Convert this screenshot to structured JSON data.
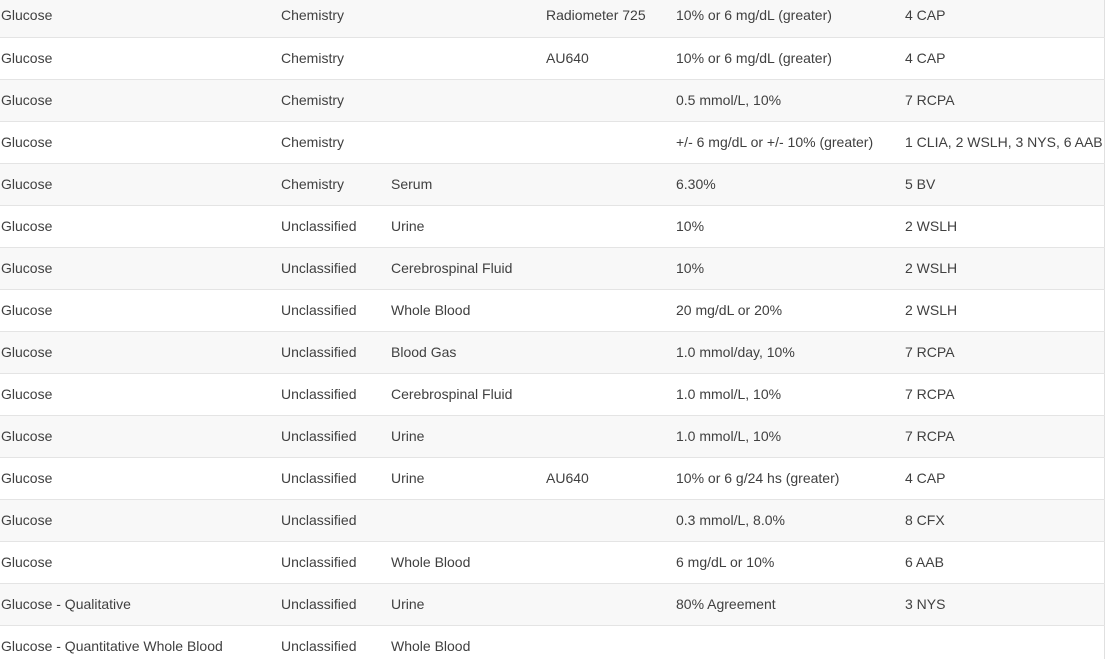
{
  "ui": {
    "type": "data-table",
    "description": "Analyte allowable-error / performance limits table, scrolled mid-list (no header visible)"
  },
  "colors": {
    "row_stripe": "#f8f8f8",
    "row_white": "#ffffff",
    "row_border": "#e4e4e4",
    "table_right_border": "#e0e0e0",
    "text": "#404040"
  },
  "table": {
    "column_keys": [
      "analyte",
      "category",
      "fluid",
      "instrument",
      "limit",
      "source"
    ],
    "rows": [
      {
        "analyte": "Glucose",
        "category": "Chemistry",
        "fluid": "",
        "instrument": "Radiometer 725",
        "limit": "10% or 6 mg/dL (greater)",
        "source": "4 CAP"
      },
      {
        "analyte": "Glucose",
        "category": "Chemistry",
        "fluid": "",
        "instrument": "AU640",
        "limit": "10% or 6 mg/dL (greater)",
        "source": "4 CAP"
      },
      {
        "analyte": "Glucose",
        "category": "Chemistry",
        "fluid": "",
        "instrument": "",
        "limit": "0.5 mmol/L, 10%",
        "source": "7 RCPA"
      },
      {
        "analyte": "Glucose",
        "category": "Chemistry",
        "fluid": "",
        "instrument": "",
        "limit": "+/- 6 mg/dL or +/- 10% (greater)",
        "source": "1 CLIA, 2 WSLH, 3 NYS, 6 AAB"
      },
      {
        "analyte": "Glucose",
        "category": "Chemistry",
        "fluid": "Serum",
        "instrument": "",
        "limit": "6.30%",
        "source": "5 BV"
      },
      {
        "analyte": "Glucose",
        "category": "Unclassified",
        "fluid": "Urine",
        "instrument": "",
        "limit": "10%",
        "source": "2 WSLH"
      },
      {
        "analyte": "Glucose",
        "category": "Unclassified",
        "fluid": "Cerebrospinal Fluid",
        "instrument": "",
        "limit": "10%",
        "source": "2 WSLH"
      },
      {
        "analyte": "Glucose",
        "category": "Unclassified",
        "fluid": "Whole Blood",
        "instrument": "",
        "limit": "20 mg/dL or 20%",
        "source": "2 WSLH"
      },
      {
        "analyte": "Glucose",
        "category": "Unclassified",
        "fluid": "Blood Gas",
        "instrument": "",
        "limit": "1.0 mmol/day, 10%",
        "source": "7 RCPA"
      },
      {
        "analyte": "Glucose",
        "category": "Unclassified",
        "fluid": "Cerebrospinal Fluid",
        "instrument": "",
        "limit": "1.0 mmol/L, 10%",
        "source": "7 RCPA"
      },
      {
        "analyte": "Glucose",
        "category": "Unclassified",
        "fluid": "Urine",
        "instrument": "",
        "limit": "1.0 mmol/L, 10%",
        "source": "7 RCPA"
      },
      {
        "analyte": "Glucose",
        "category": "Unclassified",
        "fluid": "Urine",
        "instrument": "AU640",
        "limit": "10% or 6 g/24 hs (greater)",
        "source": "4 CAP"
      },
      {
        "analyte": "Glucose",
        "category": "Unclassified",
        "fluid": "",
        "instrument": "",
        "limit": "0.3 mmol/L, 8.0%",
        "source": "8 CFX"
      },
      {
        "analyte": "Glucose",
        "category": "Unclassified",
        "fluid": "Whole Blood",
        "instrument": "",
        "limit": "6 mg/dL or 10%",
        "source": "6 AAB"
      },
      {
        "analyte": "Glucose - Qualitative",
        "category": "Unclassified",
        "fluid": "Urine",
        "instrument": "",
        "limit": "80% Agreement",
        "source": "3 NYS"
      },
      {
        "analyte": "Glucose - Quantitative Whole Blood",
        "category": "Unclassified",
        "fluid": "Whole Blood",
        "instrument": "",
        "limit": "",
        "source": "",
        "clipped_by_viewport": true
      }
    ]
  }
}
